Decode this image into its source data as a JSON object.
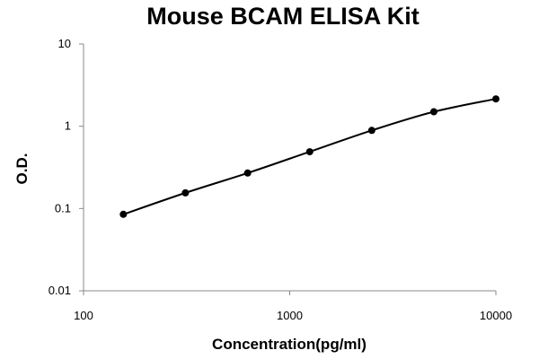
{
  "chart_data": {
    "type": "scatter",
    "title": "Mouse BCAM ELISA Kit",
    "xlabel": "Concentration(pg/ml)",
    "ylabel": "O.D.",
    "xscale": "log",
    "yscale": "log",
    "xlim": [
      100,
      10000
    ],
    "ylim": [
      0.01,
      10
    ],
    "xticks": [
      "100",
      "1000",
      "10000"
    ],
    "yticks": [
      "10",
      "1",
      "0.1",
      "0.01"
    ],
    "grid": false,
    "legend": "none",
    "series": [
      {
        "x": [
          156,
          312,
          625,
          1250,
          2500,
          5000,
          10000
        ],
        "y": [
          0.085,
          0.155,
          0.27,
          0.49,
          0.89,
          1.5,
          2.15
        ],
        "marker": "circle",
        "color": "#000000",
        "fit_line": true
      }
    ]
  }
}
